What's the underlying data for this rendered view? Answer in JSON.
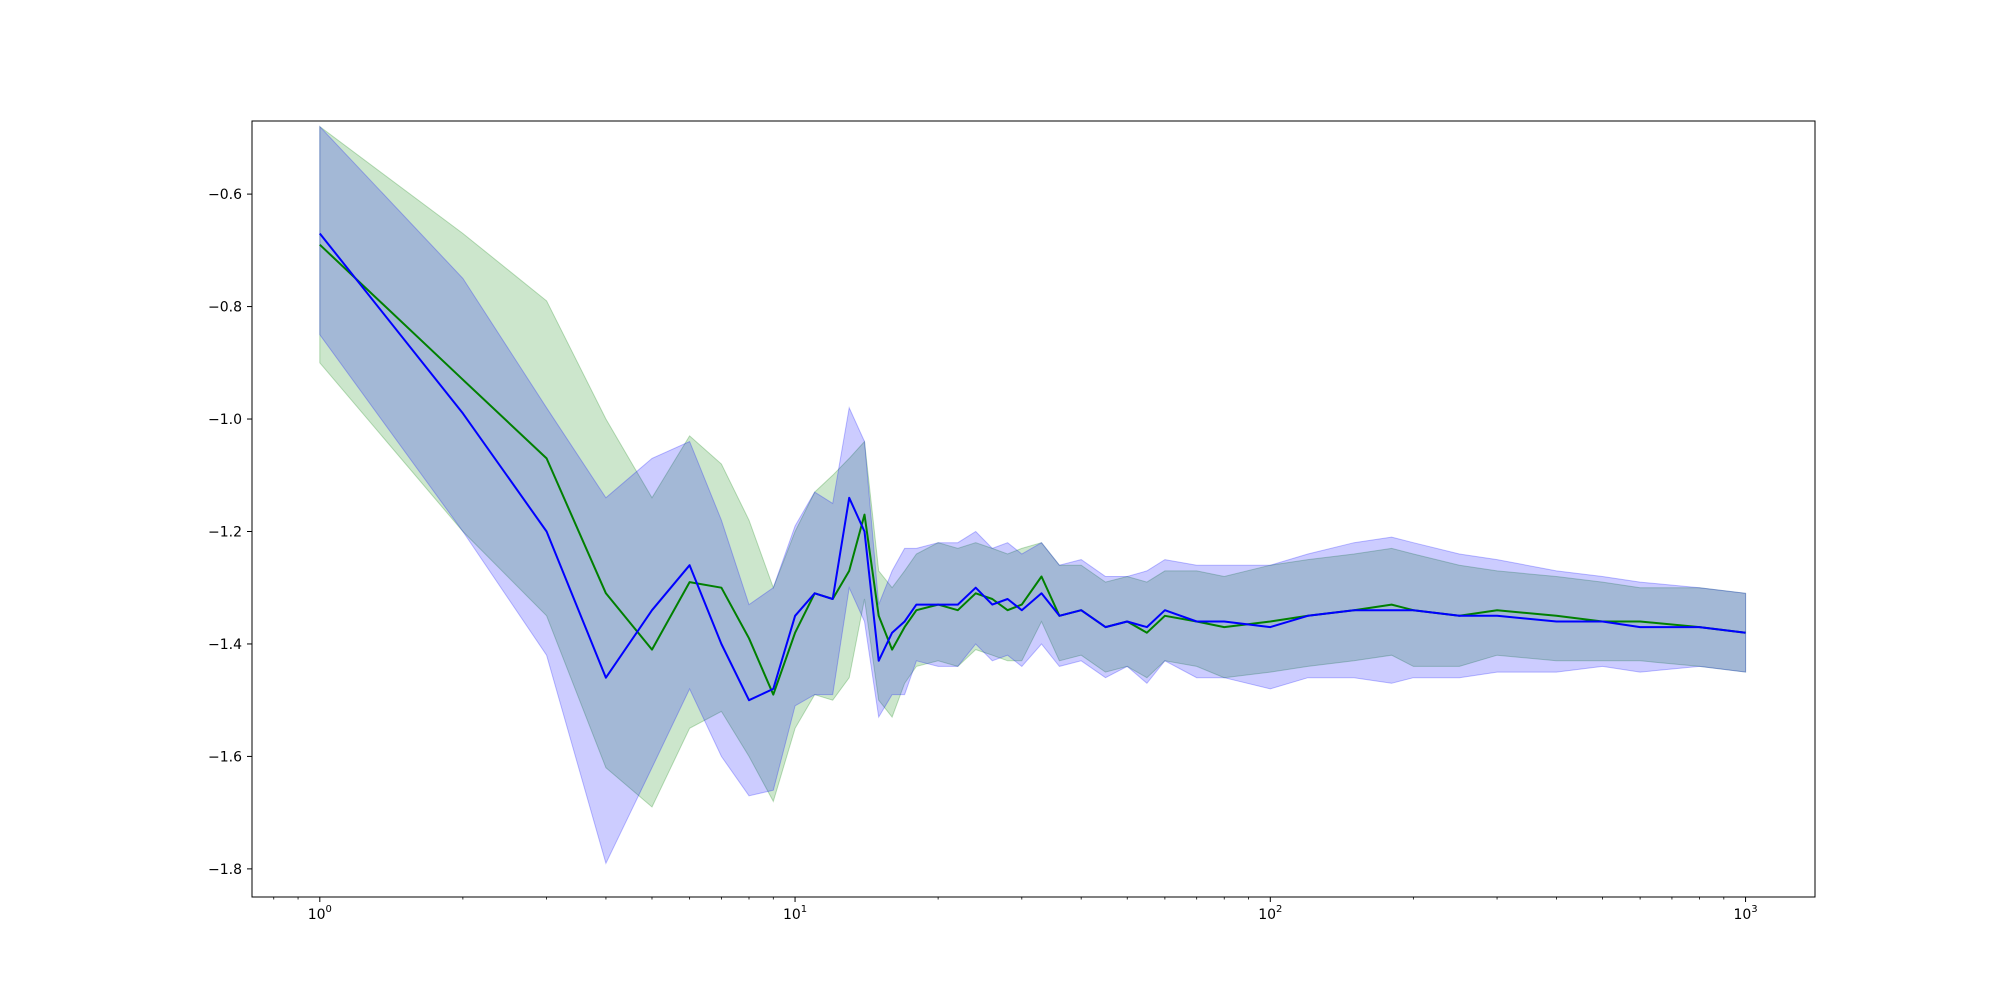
{
  "chart_data": {
    "type": "line",
    "title": "",
    "xlabel": "",
    "ylabel": "",
    "xscale": "log",
    "xlim": [
      0.72,
      1400
    ],
    "ylim": [
      -1.85,
      -0.47
    ],
    "grid": false,
    "legend": "none",
    "x_ticks": [
      {
        "base": "10",
        "exp": "0",
        "value": 1
      },
      {
        "base": "10",
        "exp": "1",
        "value": 10
      },
      {
        "base": "10",
        "exp": "2",
        "value": 100
      },
      {
        "base": "10",
        "exp": "3",
        "value": 1000
      }
    ],
    "y_ticks": [
      {
        "label": "−0.6",
        "value": -0.6
      },
      {
        "label": "−0.8",
        "value": -0.8
      },
      {
        "label": "−1.0",
        "value": -1.0
      },
      {
        "label": "−1.2",
        "value": -1.2
      },
      {
        "label": "−1.4",
        "value": -1.4
      },
      {
        "label": "−1.6",
        "value": -1.6
      },
      {
        "label": "−1.8",
        "value": -1.8
      }
    ],
    "series": [
      {
        "color": "#008000",
        "band_color": "#008000",
        "band_opacity": 0.2,
        "x": [
          1,
          2,
          3,
          4,
          5,
          6,
          7,
          8,
          9,
          10,
          11,
          12,
          13,
          14,
          15,
          16,
          17,
          18,
          20,
          22,
          24,
          26,
          28,
          30,
          33,
          36,
          40,
          45,
          50,
          55,
          60,
          70,
          80,
          100,
          120,
          150,
          180,
          200,
          250,
          300,
          400,
          500,
          600,
          800,
          1000
        ],
        "values": [
          -0.69,
          -0.93,
          -1.07,
          -1.31,
          -1.41,
          -1.29,
          -1.3,
          -1.39,
          -1.49,
          -1.38,
          -1.31,
          -1.32,
          -1.27,
          -1.17,
          -1.35,
          -1.41,
          -1.37,
          -1.34,
          -1.33,
          -1.34,
          -1.31,
          -1.32,
          -1.34,
          -1.33,
          -1.28,
          -1.35,
          -1.34,
          -1.37,
          -1.36,
          -1.38,
          -1.35,
          -1.36,
          -1.37,
          -1.36,
          -1.35,
          -1.34,
          -1.33,
          -1.34,
          -1.35,
          -1.34,
          -1.35,
          -1.36,
          -1.36,
          -1.37,
          -1.38
        ],
        "upper": [
          -0.48,
          -0.67,
          -0.79,
          -1.0,
          -1.14,
          -1.03,
          -1.08,
          -1.18,
          -1.3,
          -1.2,
          -1.13,
          -1.1,
          -1.07,
          -1.04,
          -1.27,
          -1.3,
          -1.27,
          -1.24,
          -1.22,
          -1.23,
          -1.22,
          -1.23,
          -1.24,
          -1.23,
          -1.22,
          -1.26,
          -1.26,
          -1.29,
          -1.28,
          -1.29,
          -1.27,
          -1.27,
          -1.28,
          -1.26,
          -1.25,
          -1.24,
          -1.23,
          -1.24,
          -1.26,
          -1.27,
          -1.28,
          -1.29,
          -1.3,
          -1.3,
          -1.31
        ],
        "lower": [
          -0.9,
          -1.2,
          -1.35,
          -1.62,
          -1.69,
          -1.55,
          -1.52,
          -1.6,
          -1.68,
          -1.55,
          -1.49,
          -1.5,
          -1.46,
          -1.32,
          -1.5,
          -1.53,
          -1.47,
          -1.44,
          -1.43,
          -1.44,
          -1.41,
          -1.42,
          -1.43,
          -1.43,
          -1.36,
          -1.43,
          -1.42,
          -1.45,
          -1.44,
          -1.46,
          -1.43,
          -1.44,
          -1.46,
          -1.45,
          -1.44,
          -1.43,
          -1.42,
          -1.44,
          -1.44,
          -1.42,
          -1.43,
          -1.43,
          -1.43,
          -1.44,
          -1.45
        ]
      },
      {
        "color": "#0000ff",
        "band_color": "#0000ff",
        "band_opacity": 0.2,
        "x": [
          1,
          2,
          3,
          4,
          5,
          6,
          7,
          8,
          9,
          10,
          11,
          12,
          13,
          14,
          15,
          16,
          17,
          18,
          20,
          22,
          24,
          26,
          28,
          30,
          33,
          36,
          40,
          45,
          50,
          55,
          60,
          70,
          80,
          100,
          120,
          150,
          180,
          200,
          250,
          300,
          400,
          500,
          600,
          800,
          1000
        ],
        "values": [
          -0.67,
          -0.99,
          -1.2,
          -1.46,
          -1.34,
          -1.26,
          -1.4,
          -1.5,
          -1.48,
          -1.35,
          -1.31,
          -1.32,
          -1.14,
          -1.2,
          -1.43,
          -1.38,
          -1.36,
          -1.33,
          -1.33,
          -1.33,
          -1.3,
          -1.33,
          -1.32,
          -1.34,
          -1.31,
          -1.35,
          -1.34,
          -1.37,
          -1.36,
          -1.37,
          -1.34,
          -1.36,
          -1.36,
          -1.37,
          -1.35,
          -1.34,
          -1.34,
          -1.34,
          -1.35,
          -1.35,
          -1.36,
          -1.36,
          -1.37,
          -1.37,
          -1.38
        ],
        "upper": [
          -0.48,
          -0.75,
          -0.98,
          -1.14,
          -1.07,
          -1.04,
          -1.18,
          -1.33,
          -1.3,
          -1.19,
          -1.13,
          -1.15,
          -0.98,
          -1.04,
          -1.33,
          -1.27,
          -1.23,
          -1.23,
          -1.22,
          -1.22,
          -1.2,
          -1.23,
          -1.22,
          -1.24,
          -1.22,
          -1.26,
          -1.25,
          -1.28,
          -1.28,
          -1.27,
          -1.25,
          -1.26,
          -1.26,
          -1.26,
          -1.24,
          -1.22,
          -1.21,
          -1.22,
          -1.24,
          -1.25,
          -1.27,
          -1.28,
          -1.29,
          -1.3,
          -1.31
        ],
        "lower": [
          -0.85,
          -1.2,
          -1.42,
          -1.79,
          -1.62,
          -1.48,
          -1.6,
          -1.67,
          -1.66,
          -1.51,
          -1.49,
          -1.49,
          -1.3,
          -1.36,
          -1.53,
          -1.49,
          -1.49,
          -1.43,
          -1.44,
          -1.44,
          -1.4,
          -1.43,
          -1.42,
          -1.44,
          -1.4,
          -1.44,
          -1.43,
          -1.46,
          -1.44,
          -1.47,
          -1.43,
          -1.46,
          -1.46,
          -1.48,
          -1.46,
          -1.46,
          -1.47,
          -1.46,
          -1.46,
          -1.45,
          -1.45,
          -1.44,
          -1.45,
          -1.44,
          -1.45
        ]
      }
    ]
  }
}
